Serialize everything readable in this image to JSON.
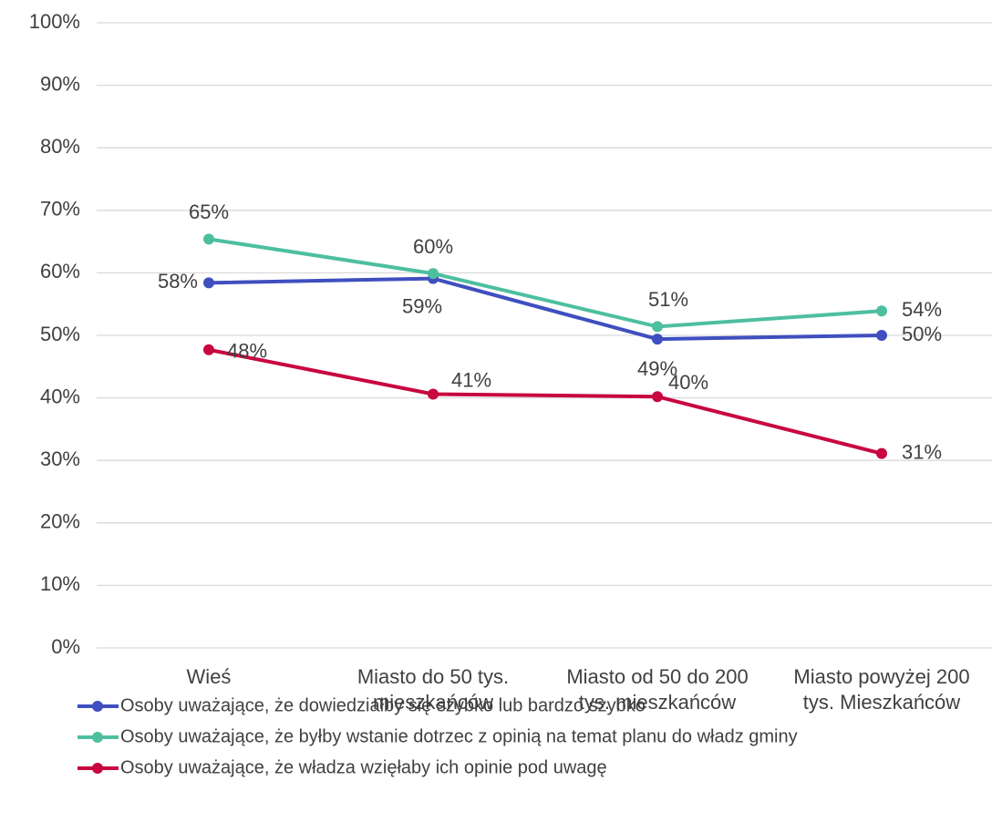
{
  "chart_data": {
    "type": "line",
    "categories": [
      [
        "Wieś"
      ],
      [
        "Miasto do 50 tys.",
        "mieszkańców"
      ],
      [
        "Miasto od 50 do 200",
        "tys. mieszkańców"
      ],
      [
        "Miasto powyżej 200",
        "tys. Mieszkańców"
      ]
    ],
    "series": [
      {
        "name": "Osoby uważające, że dowiedziałby się szybko lub bardzo szybko",
        "color": "#3f4fbf",
        "values": [
          58.4,
          59.1,
          49.4,
          50.0
        ],
        "value_labels": [
          "58%",
          "59%",
          "49%",
          "50%"
        ]
      },
      {
        "name": "Osoby uważające, że byłby wstanie dotrzec z opinią na temat planu do władz gminy",
        "color": "#4dbf9f",
        "values": [
          65.4,
          59.9,
          51.4,
          53.9
        ],
        "value_labels": [
          "65%",
          "60%",
          "51%",
          "54%"
        ]
      },
      {
        "name": "Osoby uważające, że władza wzięłaby ich opinie pod uwagę",
        "color": "#c8063f",
        "values": [
          47.7,
          40.6,
          40.2,
          31.1
        ],
        "value_labels": [
          "48%",
          "41%",
          "40%",
          "31%"
        ]
      }
    ],
    "ylim": [
      0,
      100
    ],
    "yticks": [
      {
        "value": 0,
        "label": "0%"
      },
      {
        "value": 10,
        "label": "10%"
      },
      {
        "value": 20,
        "label": "20%"
      },
      {
        "value": 30,
        "label": "30%"
      },
      {
        "value": 40,
        "label": "40%"
      },
      {
        "value": 50,
        "label": "50%"
      },
      {
        "value": 60,
        "label": "60%"
      },
      {
        "value": 70,
        "label": "70%"
      },
      {
        "value": 80,
        "label": "80%"
      },
      {
        "value": 90,
        "label": "90%"
      },
      {
        "value": 100,
        "label": "100%"
      }
    ],
    "grid": true
  }
}
